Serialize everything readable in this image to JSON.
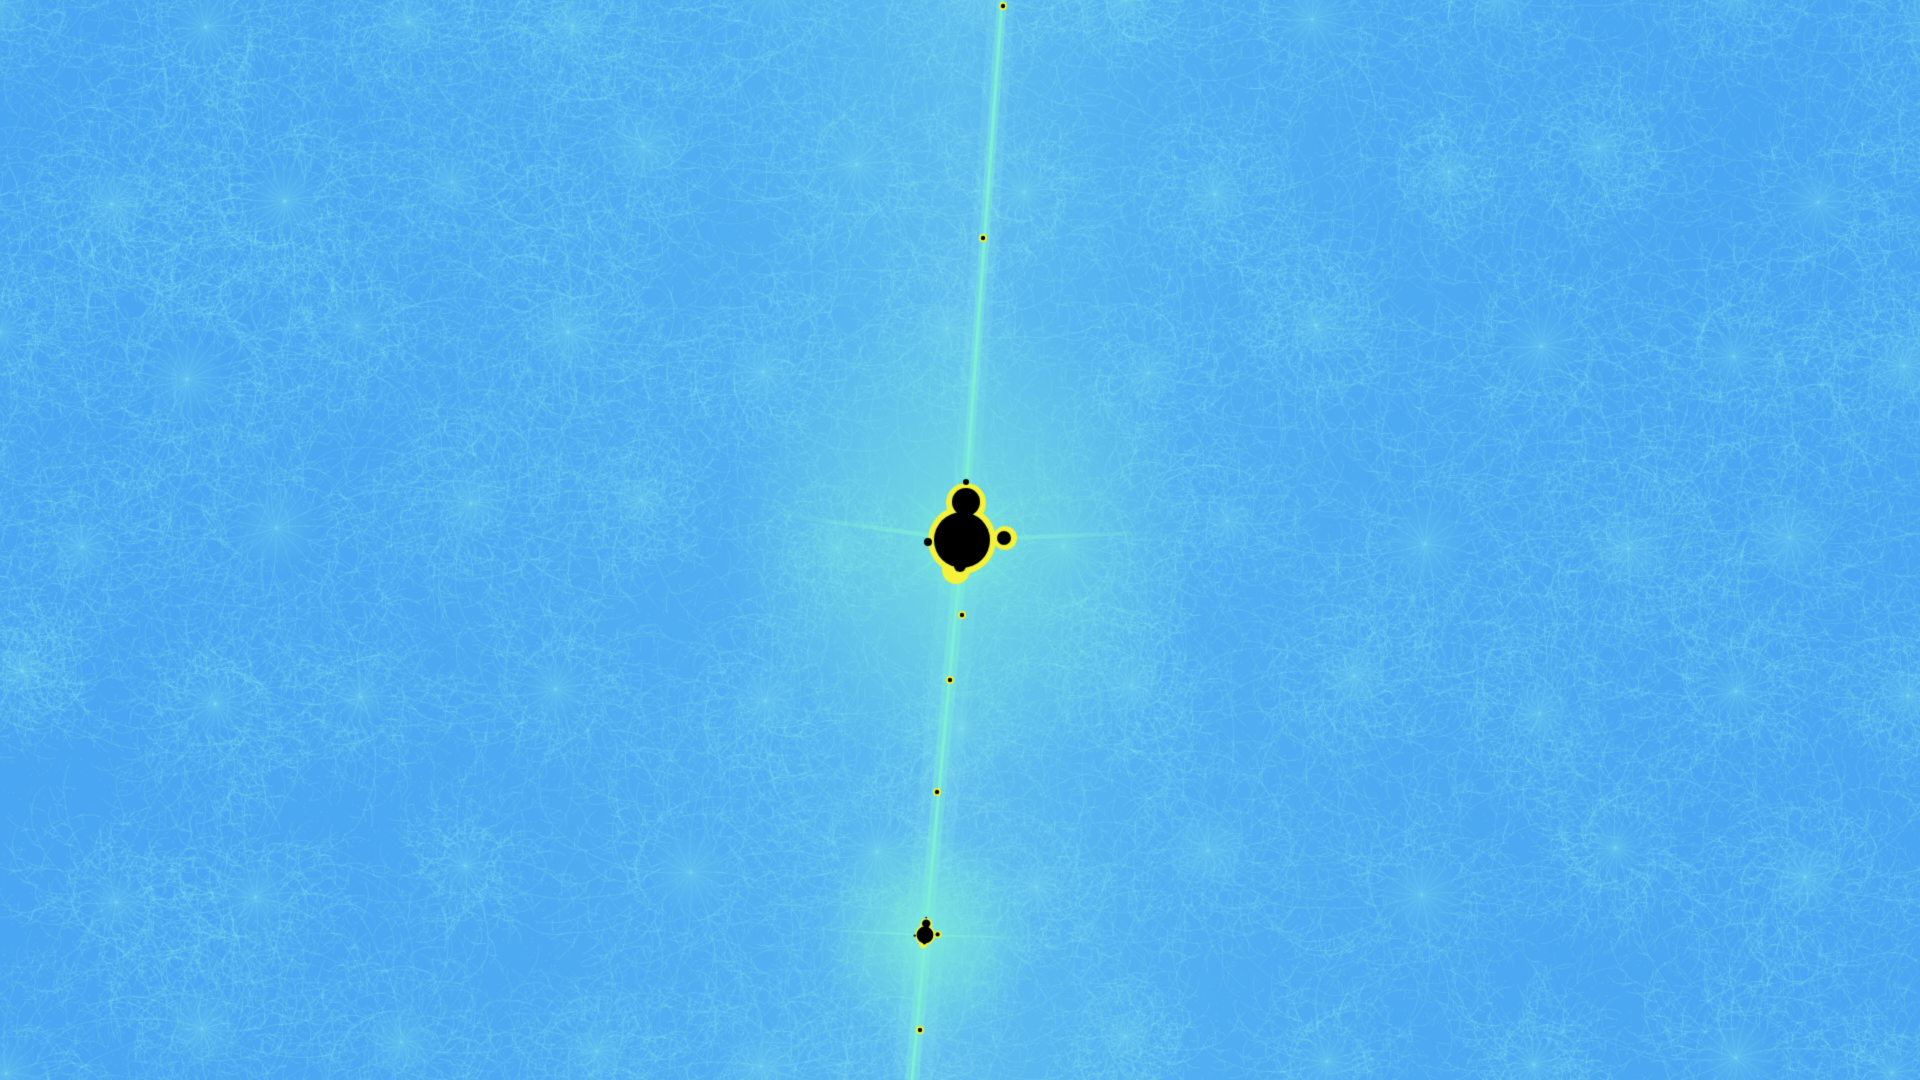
{
  "scene": {
    "subject": "mandelbrot-minibrot-zoom",
    "palette": {
      "background": "#49a6f2",
      "filament": "#66c8f4",
      "filament_bright": "#8ae8ec",
      "halo": "#7ff0d8",
      "edge_glow": "#f4f23a",
      "set_interior": "#000000"
    }
  }
}
